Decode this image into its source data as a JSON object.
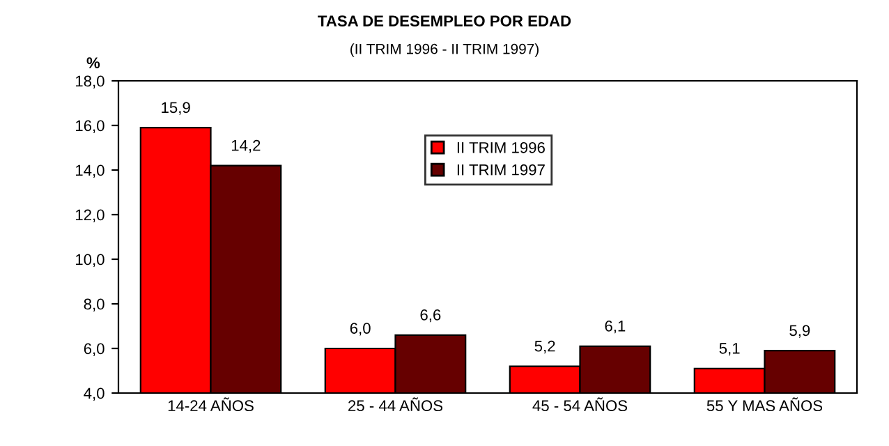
{
  "chart_data": {
    "type": "bar",
    "title": "TASA DE DESEMPLEO POR EDAD",
    "subtitle": "(II TRIM 1996 - II TRIM 1997)",
    "ylabel": "%",
    "categories": [
      "14-24 AÑOS",
      "25 - 44 AÑOS",
      "45 - 54 AÑOS",
      "55 Y MAS AÑOS"
    ],
    "series": [
      {
        "name": "II TRIM 1996",
        "color": "#ff0000",
        "values": [
          15.9,
          6.0,
          5.2,
          5.1
        ],
        "value_labels": [
          "15,9",
          "6,0",
          "5,2",
          "5,1"
        ]
      },
      {
        "name": "II TRIM 1997",
        "color": "#660000",
        "values": [
          14.2,
          6.6,
          6.1,
          5.9
        ],
        "value_labels": [
          "14,2",
          "6,6",
          "6,1",
          "5,9"
        ]
      }
    ],
    "ylim": [
      4,
      18
    ],
    "yticks": [
      {
        "value": 4,
        "label": "4,0"
      },
      {
        "value": 6,
        "label": "6,0"
      },
      {
        "value": 8,
        "label": "8,0"
      },
      {
        "value": 10,
        "label": "10,0"
      },
      {
        "value": 12,
        "label": "12,0"
      },
      {
        "value": 14,
        "label": "14,0"
      },
      {
        "value": 16,
        "label": "16,0"
      },
      {
        "value": 18,
        "label": "18,0"
      }
    ],
    "grid": false,
    "legend": "top"
  }
}
